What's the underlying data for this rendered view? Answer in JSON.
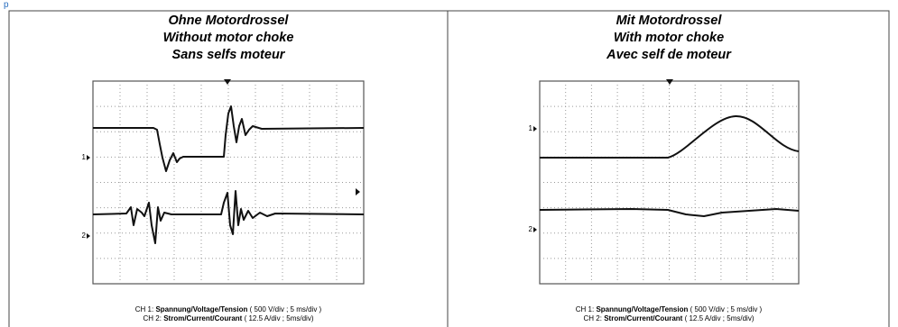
{
  "panels": [
    {
      "title": [
        "Ohne Motordrossel",
        "Without motor choke",
        "Sans selfs moteur"
      ],
      "channel_markers": [
        "1",
        "2"
      ],
      "captions": [
        {
          "channel": "CH 1:",
          "name": "Spannung/Voltage/Tension",
          "scale": "( 500 V/div ; 5 ms/div )"
        },
        {
          "channel": "CH 2:",
          "name": "Strom/Current/Courant",
          "scale": "( 12.5 A/div ; 5ms/div)"
        }
      ]
    },
    {
      "title": [
        "Mit Motordrossel",
        "With motor choke",
        "Avec self de moteur"
      ],
      "channel_markers": [
        "1",
        "2"
      ],
      "captions": [
        {
          "channel": "CH 1:",
          "name": "Spannung/Voltage/Tension",
          "scale": "( 500 V/div ; 5 ms/div )"
        },
        {
          "channel": "CH 2:",
          "name": "Strom/Current/Courant",
          "scale": "( 12.5 A/div ; 5ms/div)"
        }
      ]
    }
  ]
}
